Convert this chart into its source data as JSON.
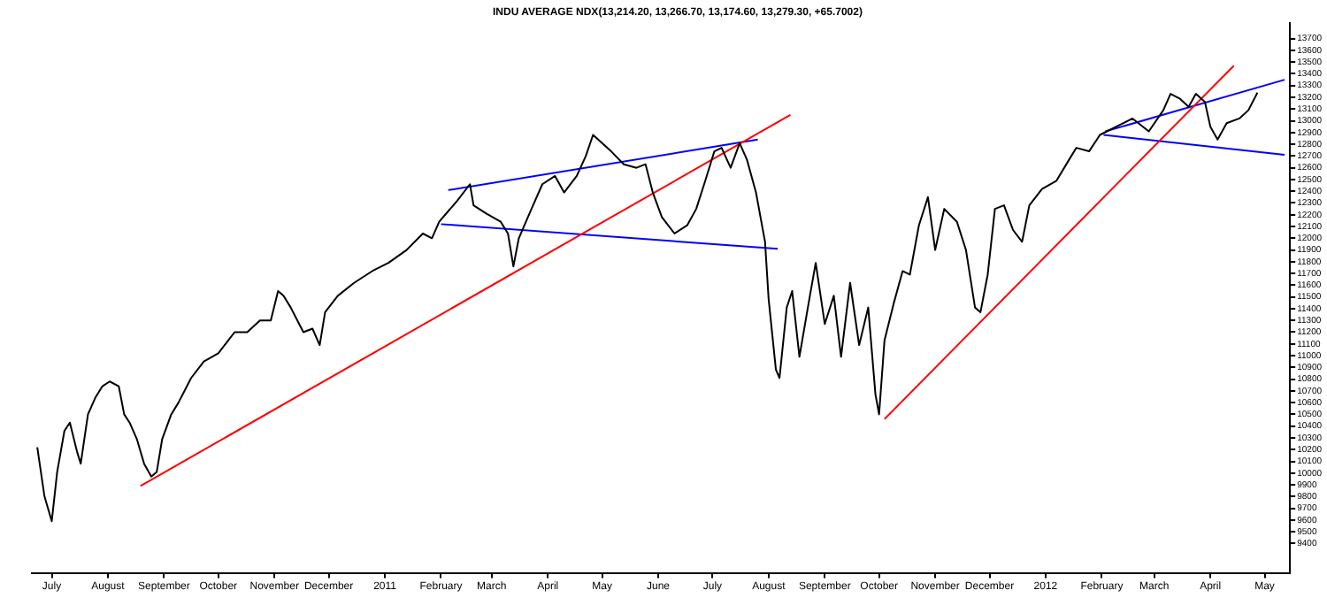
{
  "chart_data": {
    "type": "line",
    "title": "INDU AVERAGE NDX(13,214.20, 13,266.70, 13,174.60, 13,279.30, +65.7002)",
    "xlim": [
      "2010-06-20",
      "2012-05-15"
    ],
    "xticks": [
      {
        "value": "2010-07-01",
        "label": "July"
      },
      {
        "value": "2010-08-01",
        "label": "August"
      },
      {
        "value": "2010-09-01",
        "label": "September"
      },
      {
        "value": "2010-10-01",
        "label": "October"
      },
      {
        "value": "2010-11-01",
        "label": "November"
      },
      {
        "value": "2010-12-01",
        "label": "December"
      },
      {
        "value": "2011-01-01",
        "label": "2011"
      },
      {
        "value": "2011-02-01",
        "label": "February"
      },
      {
        "value": "2011-03-01",
        "label": "March"
      },
      {
        "value": "2011-04-01",
        "label": "April"
      },
      {
        "value": "2011-05-01",
        "label": "May"
      },
      {
        "value": "2011-06-01",
        "label": "June"
      },
      {
        "value": "2011-07-01",
        "label": "July"
      },
      {
        "value": "2011-08-01",
        "label": "August"
      },
      {
        "value": "2011-09-01",
        "label": "September"
      },
      {
        "value": "2011-10-01",
        "label": "October"
      },
      {
        "value": "2011-11-01",
        "label": "November"
      },
      {
        "value": "2011-12-01",
        "label": "December"
      },
      {
        "value": "2012-01-01",
        "label": "2012"
      },
      {
        "value": "2012-02-01",
        "label": "February"
      },
      {
        "value": "2012-03-01",
        "label": "March"
      },
      {
        "value": "2012-04-01",
        "label": "April"
      },
      {
        "value": "2012-05-01",
        "label": "May"
      }
    ],
    "ylim": [
      9150,
      13830
    ],
    "yticks": [
      9400,
      9500,
      9600,
      9700,
      9800,
      9900,
      10000,
      10100,
      10200,
      10300,
      10400,
      10500,
      10600,
      10700,
      10800,
      10900,
      11000,
      11100,
      11200,
      11300,
      11400,
      11500,
      11600,
      11700,
      11800,
      11900,
      12000,
      12100,
      12200,
      12300,
      12400,
      12500,
      12600,
      12700,
      12800,
      12900,
      13000,
      13100,
      13200,
      13300,
      13400,
      13500,
      13600,
      13700
    ],
    "grid": false,
    "legend": false,
    "marker": "none",
    "series": [
      {
        "color": "#000000",
        "x": [
          "2010-06-23",
          "2010-06-27",
          "2010-07-01",
          "2010-07-04",
          "2010-07-08",
          "2010-07-11",
          "2010-07-15",
          "2010-07-17",
          "2010-07-21",
          "2010-07-25",
          "2010-07-29",
          "2010-08-02",
          "2010-08-07",
          "2010-08-10",
          "2010-08-13",
          "2010-08-17",
          "2010-08-21",
          "2010-08-25",
          "2010-08-28",
          "2010-08-31",
          "2010-09-05",
          "2010-09-09",
          "2010-09-16",
          "2010-09-23",
          "2010-10-01",
          "2010-10-10",
          "2010-10-17",
          "2010-10-24",
          "2010-10-30",
          "2010-11-03",
          "2010-11-06",
          "2010-11-10",
          "2010-11-17",
          "2010-11-22",
          "2010-11-26",
          "2010-11-29",
          "2010-12-06",
          "2010-12-15",
          "2010-12-25",
          "2011-01-03",
          "2011-01-13",
          "2011-01-22",
          "2011-01-27",
          "2011-01-31",
          "2011-02-10",
          "2011-02-17",
          "2011-02-19",
          "2011-02-26",
          "2011-03-06",
          "2011-03-10",
          "2011-03-13",
          "2011-03-16",
          "2011-03-23",
          "2011-03-29",
          "2011-04-05",
          "2011-04-10",
          "2011-04-17",
          "2011-04-22",
          "2011-04-26",
          "2011-05-01",
          "2011-05-06",
          "2011-05-13",
          "2011-05-20",
          "2011-05-25",
          "2011-05-29",
          "2011-06-03",
          "2011-06-10",
          "2011-06-17",
          "2011-06-22",
          "2011-06-27",
          "2011-07-02",
          "2011-07-06",
          "2011-07-11",
          "2011-07-16",
          "2011-07-20",
          "2011-07-25",
          "2011-07-30",
          "2011-08-01",
          "2011-08-05",
          "2011-08-07",
          "2011-08-11",
          "2011-08-14",
          "2011-08-18",
          "2011-08-23",
          "2011-08-27",
          "2011-09-01",
          "2011-09-06",
          "2011-09-10",
          "2011-09-15",
          "2011-09-20",
          "2011-09-25",
          "2011-09-29",
          "2011-10-01",
          "2011-10-04",
          "2011-10-09",
          "2011-10-14",
          "2011-10-18",
          "2011-10-23",
          "2011-10-28",
          "2011-11-01",
          "2011-11-06",
          "2011-11-13",
          "2011-11-18",
          "2011-11-23",
          "2011-11-26",
          "2011-11-30",
          "2011-12-04",
          "2011-12-09",
          "2011-12-14",
          "2011-12-19",
          "2011-12-23",
          "2011-12-30",
          "2012-01-07",
          "2012-01-14",
          "2012-01-18",
          "2012-01-25",
          "2012-01-31",
          "2012-02-09",
          "2012-02-18",
          "2012-02-27",
          "2012-03-06",
          "2012-03-10",
          "2012-03-15",
          "2012-03-20",
          "2012-03-24",
          "2012-03-29",
          "2012-04-01",
          "2012-04-05",
          "2012-04-10",
          "2012-04-17",
          "2012-04-22",
          "2012-04-27"
        ],
        "values": [
          10220,
          9800,
          9590,
          10010,
          10360,
          10430,
          10180,
          10080,
          10500,
          10640,
          10740,
          10780,
          10740,
          10500,
          10430,
          10290,
          10080,
          9970,
          10010,
          10290,
          10500,
          10600,
          10810,
          10950,
          11020,
          11200,
          11200,
          11300,
          11300,
          11550,
          11510,
          11410,
          11200,
          11230,
          11090,
          11370,
          11510,
          11620,
          11720,
          11790,
          11900,
          12040,
          12000,
          12140,
          12320,
          12460,
          12280,
          12210,
          12140,
          12040,
          11760,
          12000,
          12250,
          12460,
          12530,
          12390,
          12530,
          12700,
          12880,
          12810,
          12740,
          12630,
          12600,
          12630,
          12390,
          12180,
          12040,
          12110,
          12250,
          12490,
          12740,
          12770,
          12600,
          12810,
          12670,
          12390,
          11970,
          11480,
          10880,
          10810,
          11410,
          11550,
          10990,
          11440,
          11790,
          11270,
          11510,
          10990,
          11620,
          11090,
          11410,
          10670,
          10500,
          11130,
          11440,
          11720,
          11690,
          12110,
          12350,
          11900,
          12250,
          12140,
          11900,
          11410,
          11370,
          11690,
          12250,
          12280,
          12070,
          11970,
          12280,
          12420,
          12490,
          12670,
          12770,
          12740,
          12880,
          12950,
          13020,
          12910,
          13090,
          13230,
          13190,
          13120,
          13230,
          13160,
          12950,
          12840,
          12980,
          13020,
          13090,
          13240
        ]
      },
      {
        "color": "#ff0000",
        "x": [
          "2010-08-19",
          "2011-08-13"
        ],
        "values": [
          9890,
          13050
        ]
      },
      {
        "color": "#0000ff",
        "x": [
          "2011-02-05",
          "2011-07-26"
        ],
        "values": [
          12410,
          12840
        ]
      },
      {
        "color": "#0000ff",
        "x": [
          "2011-02-01",
          "2011-08-06"
        ],
        "values": [
          12120,
          11910
        ]
      },
      {
        "color": "#ff0000",
        "x": [
          "2011-10-04",
          "2012-04-14"
        ],
        "values": [
          10460,
          13470
        ]
      },
      {
        "color": "#0000ff",
        "x": [
          "2012-02-03",
          "2012-05-12"
        ],
        "values": [
          12910,
          13350
        ]
      },
      {
        "color": "#0000ff",
        "x": [
          "2012-02-02",
          "2012-05-12"
        ],
        "values": [
          12880,
          12710
        ]
      }
    ]
  }
}
